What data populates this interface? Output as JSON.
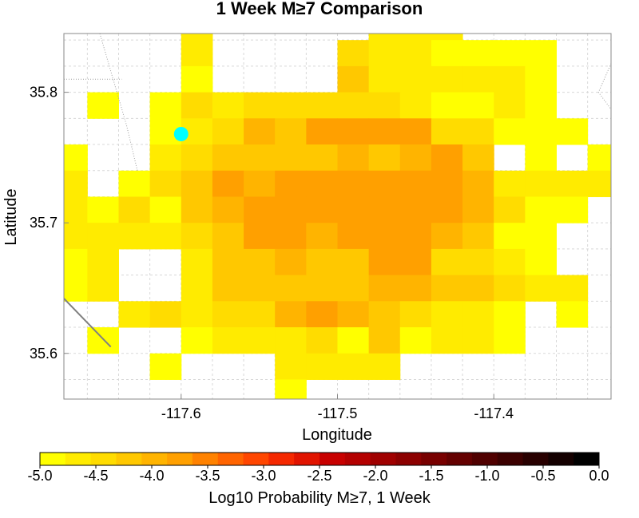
{
  "chart_data": {
    "type": "heatmap",
    "title": "1 Week M≥7 Comparison",
    "xlabel": "Longitude",
    "ylabel": "Latitude",
    "xlim": [
      -117.675,
      -117.325
    ],
    "ylim": [
      35.565,
      35.845
    ],
    "x_ticks": [
      -117.6,
      -117.5,
      -117.4
    ],
    "x_tick_labels": [
      "-117.6",
      "-117.5",
      "-117.4"
    ],
    "y_ticks": [
      35.6,
      35.7,
      35.8
    ],
    "y_tick_labels": [
      "35.6",
      "35.7",
      "35.8"
    ],
    "grid": true,
    "grid_step_degrees": 0.02,
    "grid_origin": {
      "lon": -117.67,
      "lat": 35.57
    },
    "grid_rows_description": "rows listed from north (top) to south (bottom); values are log10 probability, null = no data",
    "grid_values": [
      [
        null,
        null,
        null,
        null,
        null,
        null,
        null,
        -4.7,
        null,
        null,
        -4.8,
        -4.8,
        null,
        null,
        null,
        null,
        null,
        null
      ],
      [
        null,
        null,
        null,
        null,
        -4.6,
        null,
        null,
        null,
        null,
        null,
        -4.7,
        -4.6,
        -4.7,
        null,
        null,
        null,
        null,
        null
      ],
      [
        null,
        null,
        null,
        null,
        -4.6,
        null,
        null,
        null,
        null,
        -4.4,
        -4.6,
        -4.6,
        -4.8,
        -4.9,
        -4.9,
        -4.9,
        null,
        null
      ],
      [
        null,
        null,
        null,
        null,
        -4.9,
        null,
        null,
        null,
        null,
        -4.3,
        -4.7,
        -4.6,
        -4.6,
        -4.7,
        -4.7,
        -4.8,
        null,
        null
      ],
      [
        null,
        -4.8,
        null,
        -4.9,
        -4.5,
        -4.7,
        -4.4,
        -4.4,
        -4.4,
        -4.4,
        -4.4,
        -4.6,
        -4.8,
        -4.9,
        -4.6,
        -4.9,
        null,
        null
      ],
      [
        null,
        null,
        null,
        -4.8,
        -4.7,
        -4.4,
        -4.0,
        -4.1,
        -3.8,
        -3.8,
        -3.8,
        -3.8,
        -4.4,
        -4.5,
        -4.9,
        -4.9,
        -4.8,
        null
      ],
      [
        -4.8,
        null,
        null,
        -4.7,
        -4.4,
        -4.2,
        -4.1,
        -4.2,
        -4.1,
        -4.0,
        -4.2,
        -4.0,
        -3.8,
        -4.3,
        null,
        -4.9,
        null,
        -4.8
      ],
      [
        -4.7,
        null,
        -4.9,
        -4.4,
        -4.3,
        -3.8,
        -4.0,
        -3.8,
        -3.8,
        -3.8,
        -3.8,
        -3.8,
        -3.8,
        -4.0,
        -4.7,
        -4.7,
        -4.7,
        -4.7
      ],
      [
        -4.7,
        -4.8,
        -4.5,
        -4.9,
        -4.3,
        -4.0,
        -3.8,
        -3.8,
        -3.8,
        -3.8,
        -3.8,
        -3.8,
        -3.8,
        -4.0,
        -4.4,
        -4.8,
        -4.8,
        null
      ],
      [
        -4.7,
        -4.7,
        -4.7,
        -4.7,
        -4.4,
        -4.1,
        -3.8,
        -3.8,
        -3.9,
        -3.8,
        -3.8,
        -3.8,
        -4.0,
        -4.2,
        -4.8,
        -4.8,
        null,
        null
      ],
      [
        -4.8,
        -4.7,
        null,
        null,
        -4.6,
        -4.3,
        -4.1,
        -4.0,
        -4.2,
        -4.1,
        -3.8,
        -3.8,
        -4.4,
        -4.4,
        -4.7,
        -4.8,
        null,
        null
      ],
      [
        -4.8,
        -4.7,
        null,
        null,
        -4.6,
        -4.2,
        -4.2,
        -4.1,
        -4.1,
        -4.2,
        -3.9,
        -4.0,
        -4.1,
        -4.2,
        -4.5,
        -4.6,
        -4.6,
        null
      ],
      [
        null,
        null,
        -4.7,
        -4.5,
        -4.7,
        -4.5,
        -4.5,
        -4.0,
        -3.8,
        -4.0,
        -4.2,
        -4.4,
        -4.6,
        -4.6,
        -4.8,
        null,
        -4.8,
        null
      ],
      [
        null,
        -4.8,
        null,
        null,
        -4.8,
        -4.6,
        -4.6,
        -4.7,
        -4.5,
        -4.9,
        -4.3,
        -4.9,
        -4.6,
        -4.6,
        -4.8,
        null,
        null,
        null
      ],
      [
        null,
        null,
        null,
        -4.9,
        null,
        null,
        null,
        -4.6,
        -4.7,
        -4.7,
        -4.7,
        null,
        null,
        null,
        null,
        null,
        null,
        null
      ],
      [
        null,
        null,
        null,
        null,
        null,
        null,
        null,
        -4.9,
        null,
        null,
        null,
        null,
        null,
        null,
        null,
        null,
        null,
        null
      ]
    ],
    "marker": {
      "lon": -117.6,
      "lat": 35.768,
      "color": "#00ffff"
    },
    "colorbar": {
      "label": "Log10 Probability M≥7, 1 Week",
      "min": -5.0,
      "max": 0.0,
      "ticks": [
        -5.0,
        -4.5,
        -4.0,
        -3.5,
        -3.0,
        -2.5,
        -2.0,
        -1.5,
        -1.0,
        -0.5,
        0.0
      ],
      "tick_labels": [
        "-5.0",
        "-4.5",
        "-4.0",
        "-3.5",
        "-3.0",
        "-2.5",
        "-2.0",
        "-1.5",
        "-1.0",
        "-0.5",
        "0.0"
      ],
      "colors": [
        "#ffff00",
        "#ffeb00",
        "#ffdc00",
        "#ffc800",
        "#ffb400",
        "#ffa000",
        "#ff8200",
        "#ff6400",
        "#ff4600",
        "#f52800",
        "#e11400",
        "#c80000",
        "#b40000",
        "#a00000",
        "#8c0000",
        "#780000",
        "#640000",
        "#500000",
        "#3c0000",
        "#280000",
        "#140000",
        "#000000"
      ],
      "orientation": "horizontal"
    },
    "faults": [
      {
        "color": "#a0a0a0",
        "style": "dotted",
        "points": [
          [
            -117.652,
            35.845
          ],
          [
            -117.635,
            35.775
          ],
          [
            -117.628,
            35.74
          ]
        ]
      },
      {
        "color": "#a0a0a0",
        "style": "dotted",
        "points": [
          [
            -117.675,
            35.81
          ],
          [
            -117.638,
            35.81
          ]
        ]
      },
      {
        "color": "#808080",
        "style": "solid",
        "points": [
          [
            -117.675,
            35.642
          ],
          [
            -117.645,
            35.605
          ]
        ]
      },
      {
        "color": "#a0a0a0",
        "style": "dotted",
        "points": [
          [
            -117.325,
            35.822
          ],
          [
            -117.333,
            35.8
          ],
          [
            -117.325,
            35.787
          ]
        ]
      }
    ]
  }
}
